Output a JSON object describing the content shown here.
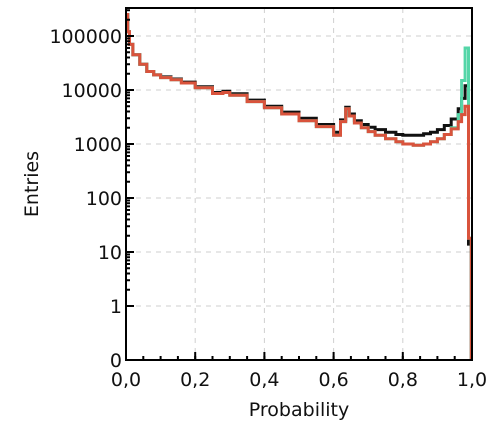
{
  "chart_data": {
    "type": "line",
    "title": "",
    "xlabel": "Probability",
    "ylabel": "Entries",
    "xlim": [
      0.0,
      1.0
    ],
    "ylim": [
      0,
      200000
    ],
    "yscale": "log",
    "grid": true,
    "xtick_labels": [
      "0,0",
      "0,2",
      "0,4",
      "0,6",
      "0,8",
      "1,0"
    ],
    "xtick_values": [
      0.0,
      0.2,
      0.4,
      0.6,
      0.8,
      1.0
    ],
    "ytick_labels": [
      "0",
      "1",
      "10",
      "100",
      "1000",
      "10000",
      "100000"
    ],
    "ytick_values": [
      0,
      1,
      10,
      100,
      1000,
      10000,
      100000
    ],
    "series": [
      {
        "color": "#111111",
        "x": [
          0.0,
          0.005,
          0.01,
          0.02,
          0.04,
          0.06,
          0.08,
          0.1,
          0.13,
          0.16,
          0.2,
          0.25,
          0.28,
          0.3,
          0.35,
          0.4,
          0.45,
          0.5,
          0.55,
          0.6,
          0.62,
          0.635,
          0.645,
          0.66,
          0.68,
          0.7,
          0.72,
          0.75,
          0.78,
          0.8,
          0.83,
          0.86,
          0.88,
          0.9,
          0.92,
          0.94,
          0.96,
          0.97,
          0.98,
          0.99
        ],
        "values": [
          250000,
          120000,
          70000,
          45000,
          30000,
          22000,
          19000,
          17500,
          16000,
          14000,
          11500,
          9000,
          9500,
          8500,
          6500,
          5000,
          3900,
          3000,
          2300,
          1650,
          2800,
          4800,
          3600,
          2700,
          2300,
          2050,
          1850,
          1650,
          1500,
          1450,
          1450,
          1550,
          1650,
          1850,
          2200,
          2900,
          4500,
          7000,
          12000,
          14
        ]
      },
      {
        "color": "#55d6a8",
        "x": [
          0.0,
          0.005,
          0.01,
          0.02,
          0.04,
          0.06,
          0.08,
          0.1,
          0.13,
          0.16,
          0.2,
          0.25,
          0.28,
          0.3,
          0.35,
          0.4,
          0.45,
          0.5,
          0.55,
          0.6,
          0.62,
          0.635,
          0.645,
          0.66,
          0.68,
          0.7,
          0.72,
          0.75,
          0.78,
          0.8,
          0.83,
          0.86,
          0.88,
          0.9,
          0.92,
          0.94,
          0.96,
          0.97,
          0.98,
          0.99
        ],
        "values": [
          250000,
          120000,
          70000,
          45000,
          30000,
          22000,
          19000,
          17000,
          15500,
          13500,
          11000,
          8600,
          9000,
          8000,
          6100,
          4700,
          3600,
          2700,
          2100,
          1450,
          2600,
          4500,
          3300,
          2450,
          2000,
          1700,
          1450,
          1250,
          1100,
          1000,
          950,
          1000,
          1100,
          1250,
          1500,
          2000,
          3500,
          15000,
          60000,
          18
        ]
      },
      {
        "color": "#d9533c",
        "x": [
          0.0,
          0.005,
          0.01,
          0.02,
          0.04,
          0.06,
          0.08,
          0.1,
          0.13,
          0.16,
          0.2,
          0.25,
          0.28,
          0.3,
          0.35,
          0.4,
          0.45,
          0.5,
          0.55,
          0.6,
          0.62,
          0.635,
          0.645,
          0.66,
          0.68,
          0.7,
          0.72,
          0.75,
          0.78,
          0.8,
          0.83,
          0.86,
          0.88,
          0.9,
          0.92,
          0.94,
          0.96,
          0.97,
          0.98,
          0.99
        ],
        "values": [
          250000,
          120000,
          70000,
          45000,
          30000,
          22000,
          19000,
          17000,
          15500,
          13500,
          11000,
          8600,
          9000,
          8000,
          6100,
          4700,
          3600,
          2700,
          2100,
          1450,
          2600,
          4500,
          3300,
          2450,
          2000,
          1700,
          1450,
          1250,
          1100,
          1000,
          950,
          1000,
          1100,
          1250,
          1500,
          1900,
          2600,
          3500,
          5000,
          18
        ]
      }
    ]
  }
}
